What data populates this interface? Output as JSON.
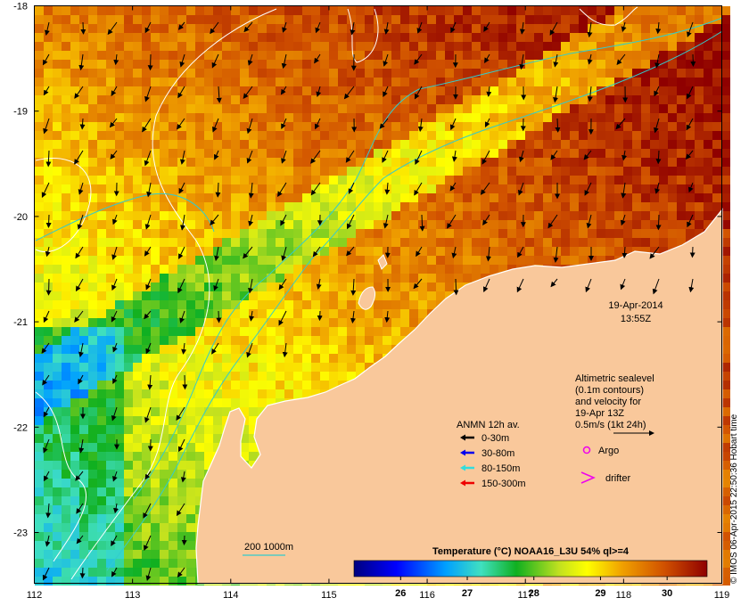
{
  "map": {
    "lon_ticks": [
      "112",
      "113",
      "114",
      "115",
      "116",
      "117",
      "118",
      "119"
    ],
    "lat_ticks": [
      "-18",
      "-19",
      "-20",
      "-21",
      "-22",
      "-23"
    ],
    "date": "19-Apr-2014",
    "time": "13:55Z",
    "land_color": "#f9c89b",
    "coast_color": "#ffffff"
  },
  "altimetry": {
    "line1": "Altimetric sealevel",
    "line2": "(0.1m contours)",
    "line3": "and velocity for",
    "line4": "19-Apr 13Z",
    "line5": "0.5m/s (1kt 24h)"
  },
  "anmn": {
    "title": "ANMN 12h av.",
    "items": [
      {
        "label": "0-30m",
        "color": "#000000"
      },
      {
        "label": "30-80m",
        "color": "#0000ee"
      },
      {
        "label": "80-150m",
        "color": "#33dddd"
      },
      {
        "label": "150-300m",
        "color": "#ee0000"
      }
    ]
  },
  "markers": {
    "argo": "Argo",
    "argo_color": "#ee00ee",
    "drifter": "drifter",
    "drifter_color": "#ee00ee"
  },
  "bathymetry": {
    "label": "200  1000m",
    "color": "#33cccc"
  },
  "colorbar": {
    "title": "Temperature (°C) NOAA16_L3U 54% ql>=4",
    "ticks": [
      "26",
      "27",
      "28",
      "29",
      "30"
    ],
    "min": 25.3,
    "max": 30.6
  },
  "stamp": "© IMOS 06-Apr-2015 22:50:36 Hobart time"
}
